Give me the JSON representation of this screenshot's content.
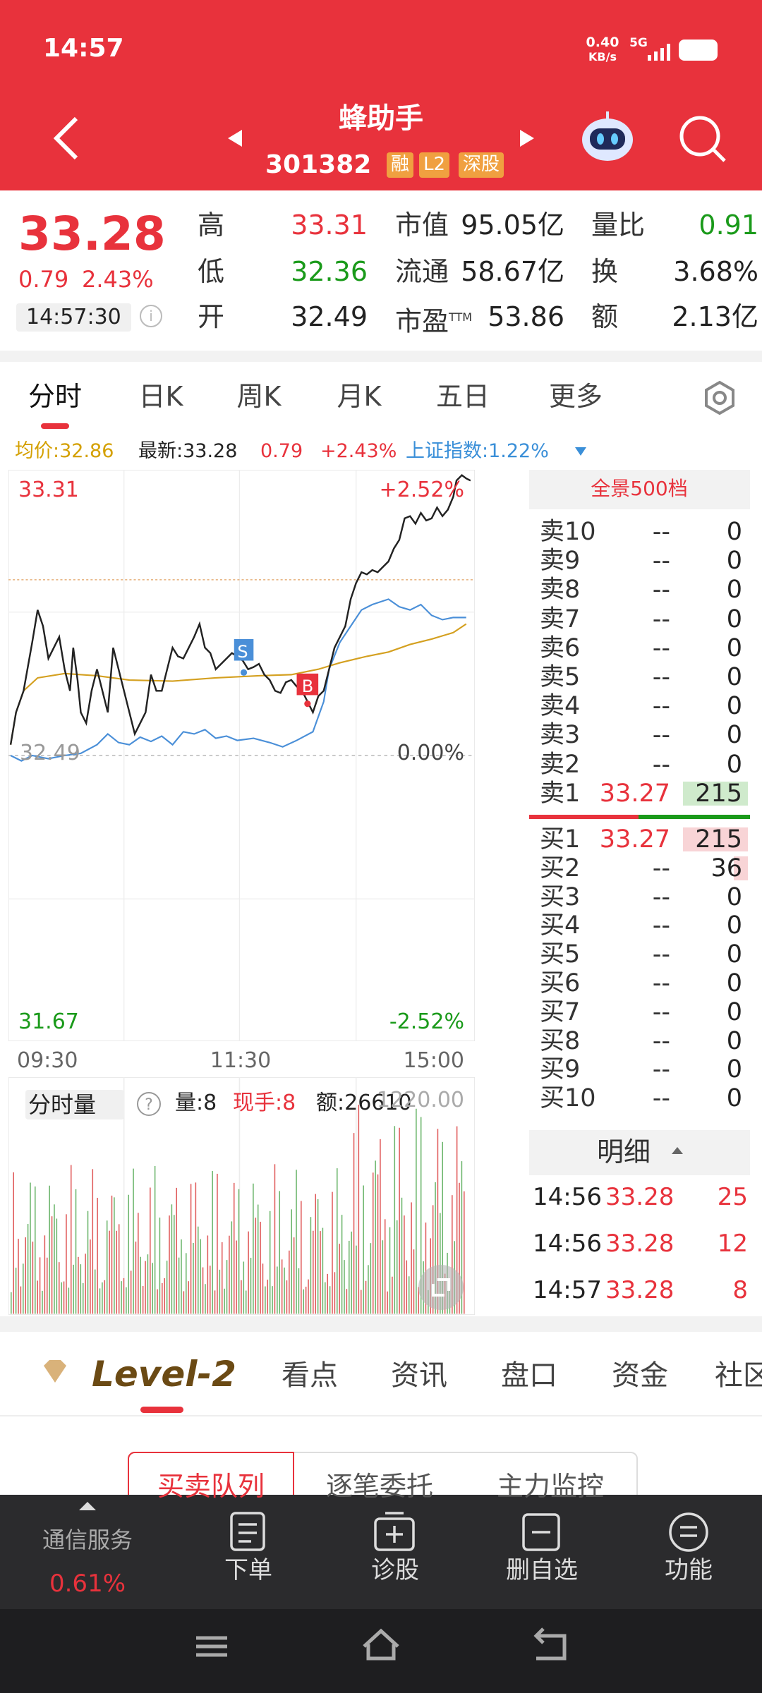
{
  "status_bar": {
    "time": "14:57",
    "speed": "0.40",
    "speed_unit": "KB/s",
    "network": "5G"
  },
  "header": {
    "title": "蜂助手",
    "code": "301382",
    "tags": [
      "融",
      "L2",
      "深股"
    ]
  },
  "quote": {
    "price": "33.28",
    "change": "0.79",
    "change_pct": "2.43%",
    "time": "14:57:30",
    "col1": [
      {
        "label": "高",
        "value": "33.31"
      },
      {
        "label": "低",
        "value": "32.36"
      },
      {
        "label": "开",
        "value": "32.49"
      }
    ],
    "col2": [
      {
        "label": "市值",
        "value": "95.05亿"
      },
      {
        "label": "流通",
        "value": "58.67亿"
      },
      {
        "label": "市盈",
        "sup": "TTM",
        "value": "53.86"
      }
    ],
    "col3": [
      {
        "label": "量比",
        "value": "0.91"
      },
      {
        "label": "换",
        "value": "3.68%"
      },
      {
        "label": "额",
        "value": "2.13亿"
      }
    ]
  },
  "chart_tabs": [
    "分时",
    "日K",
    "周K",
    "月K",
    "五日",
    "更多"
  ],
  "chart_info": {
    "avg": "均价:32.86",
    "latest": "最新:33.28",
    "change": "0.79",
    "change_pct": "+2.43%",
    "index": "上证指数:1.22%"
  },
  "price_chart": {
    "high": "33.31",
    "low": "31.67",
    "pre_close": "32.49",
    "up_pct": "+2.52%",
    "zero_pct": "0.00%",
    "down_pct": "-2.52%",
    "times": [
      "09:30",
      "11:30",
      "15:00"
    ],
    "buy_marker": "B",
    "sell_marker": "S"
  },
  "volume_chart": {
    "title": "分时量",
    "volume": "量:8",
    "hand": "现手:8",
    "amount": "额:26610",
    "max": "1220.00"
  },
  "order_book": {
    "title": "全景500档",
    "asks": [
      {
        "label": "卖10",
        "price": "--",
        "volume": "0"
      },
      {
        "label": "卖9",
        "price": "--",
        "volume": "0"
      },
      {
        "label": "卖8",
        "price": "--",
        "volume": "0"
      },
      {
        "label": "卖7",
        "price": "--",
        "volume": "0"
      },
      {
        "label": "卖6",
        "price": "--",
        "volume": "0"
      },
      {
        "label": "卖5",
        "price": "--",
        "volume": "0"
      },
      {
        "label": "卖4",
        "price": "--",
        "volume": "0"
      },
      {
        "label": "卖3",
        "price": "--",
        "volume": "0"
      },
      {
        "label": "卖2",
        "price": "--",
        "volume": "0"
      },
      {
        "label": "卖1",
        "price": "33.27",
        "volume": "215"
      }
    ],
    "bids": [
      {
        "label": "买1",
        "price": "33.27",
        "volume": "215"
      },
      {
        "label": "买2",
        "price": "--",
        "volume": "36"
      },
      {
        "label": "买3",
        "price": "--",
        "volume": "0"
      },
      {
        "label": "买4",
        "price": "--",
        "volume": "0"
      },
      {
        "label": "买5",
        "price": "--",
        "volume": "0"
      },
      {
        "label": "买6",
        "price": "--",
        "volume": "0"
      },
      {
        "label": "买7",
        "price": "--",
        "volume": "0"
      },
      {
        "label": "买8",
        "price": "--",
        "volume": "0"
      },
      {
        "label": "买9",
        "price": "--",
        "volume": "0"
      },
      {
        "label": "买10",
        "price": "--",
        "volume": "0"
      }
    ]
  },
  "trades": {
    "title": "明细",
    "rows": [
      {
        "time": "14:56",
        "price": "33.28",
        "volume": "25"
      },
      {
        "time": "14:56",
        "price": "33.28",
        "volume": "12"
      },
      {
        "time": "14:57",
        "price": "33.28",
        "volume": "8"
      }
    ]
  },
  "bottom_tabs": {
    "brand": "Level-2",
    "items": [
      "看点",
      "资讯",
      "盘口",
      "资金",
      "社区"
    ]
  },
  "sub_tabs": [
    "买卖队列",
    "逐笔委托",
    "主力监控"
  ],
  "nav": {
    "sector": "通信服务",
    "sector_pct": "0.61%",
    "items": [
      "下单",
      "诊股",
      "删自选",
      "功能"
    ]
  }
}
